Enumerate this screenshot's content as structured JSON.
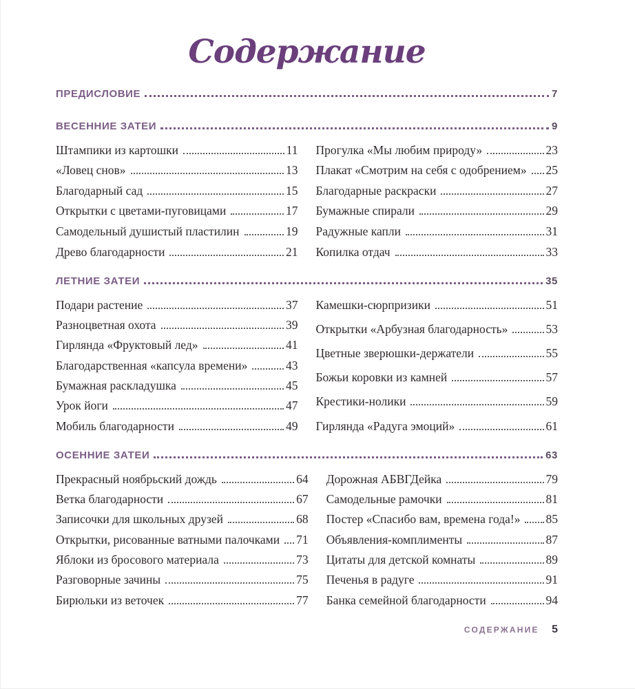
{
  "title": "Содержание",
  "colors": {
    "title_purple": "#6a3f7b",
    "header_purple": "#7b5d86",
    "header_number": "#5a4c60",
    "body_text": "#2f2a2e",
    "footer_label": "#8a7292",
    "footer_number": "#3f3545"
  },
  "preface": {
    "label": "ПРЕДИСЛОВИЕ",
    "page": "7"
  },
  "sections": [
    {
      "label": "ВЕСЕННИЕ ЗАТЕИ",
      "page": "9",
      "left": [
        {
          "title": "Штампики из картошки",
          "page": "11"
        },
        {
          "title": "«Ловец снов»",
          "page": "13"
        },
        {
          "title": "Благодарный сад",
          "page": "15"
        },
        {
          "title": "Открытки с цветами-пуговицами",
          "page": "17"
        },
        {
          "title": "Самодельный душистый пластилин",
          "page": "19"
        },
        {
          "title": "Древо благодарности",
          "page": "21"
        }
      ],
      "right": [
        {
          "title": "Прогулка «Мы любим природу»",
          "page": "23"
        },
        {
          "title": "Плакат «Смотрим на себя с одобрением»",
          "page": "25"
        },
        {
          "title": "Благодарные раскраски",
          "page": "27"
        },
        {
          "title": "Бумажные спирали",
          "page": "29"
        },
        {
          "title": "Радужные капли",
          "page": "31"
        },
        {
          "title": "Копилка отдач",
          "page": "33"
        }
      ]
    },
    {
      "label": "ЛЕТНИЕ ЗАТЕИ",
      "page": "35",
      "left": [
        {
          "title": "Подари растение",
          "page": "37"
        },
        {
          "title": "Разноцветная охота",
          "page": "39"
        },
        {
          "title": "Гирлянда «Фруктовый лед»",
          "page": "41"
        },
        {
          "title": "Благодарственная «капсула времени»",
          "page": "43"
        },
        {
          "title": "Бумажная раскладушка",
          "page": "45"
        },
        {
          "title": "Урок йоги",
          "page": "47"
        },
        {
          "title": "Мобиль благодарности",
          "page": "49"
        }
      ],
      "right": [
        {
          "title": "Камешки-сюрпризики",
          "page": "51"
        },
        {
          "title": "Открытки «Арбузная благодарность»",
          "page": "53"
        },
        {
          "title": "Цветные зверюшки-держатели",
          "page": "55"
        },
        {
          "title": "Божьи коровки из камней",
          "page": "57"
        },
        {
          "title": "Крестики-нолики",
          "page": "59"
        },
        {
          "title": "Гирлянда «Радуга эмоций»",
          "page": "61"
        }
      ]
    },
    {
      "label": "ОСЕННИЕ ЗАТЕИ",
      "page": "63",
      "left": [
        {
          "title": "Прекрасный ноябрьский дождь",
          "page": "64"
        },
        {
          "title": "Ветка благодарности",
          "page": "67"
        },
        {
          "title": "Записочки для школьных друзей",
          "page": "68"
        },
        {
          "title": "Открытки, рисованные ватными палочками",
          "page": "71"
        },
        {
          "title": "Яблоки из бросового материала",
          "page": "73"
        },
        {
          "title": "Разговорные зачины",
          "page": "75"
        },
        {
          "title": "Бирюльки из веточек",
          "page": "77"
        }
      ],
      "right": [
        {
          "title": "Дорожная АБВГДейка",
          "page": "79"
        },
        {
          "title": "Самодельные рамочки",
          "page": "81"
        },
        {
          "title": "Постер «Спасибо вам, времена года!»",
          "page": "85"
        },
        {
          "title": "Объявления-комплименты",
          "page": "87"
        },
        {
          "title": "Цитаты для детской комнаты",
          "page": "89"
        },
        {
          "title": "Печенья в радуге",
          "page": "91"
        },
        {
          "title": "Банка семейной благодарности",
          "page": "94"
        }
      ]
    }
  ],
  "footer": {
    "label": "СОДЕРЖАНИЕ",
    "page": "5"
  }
}
